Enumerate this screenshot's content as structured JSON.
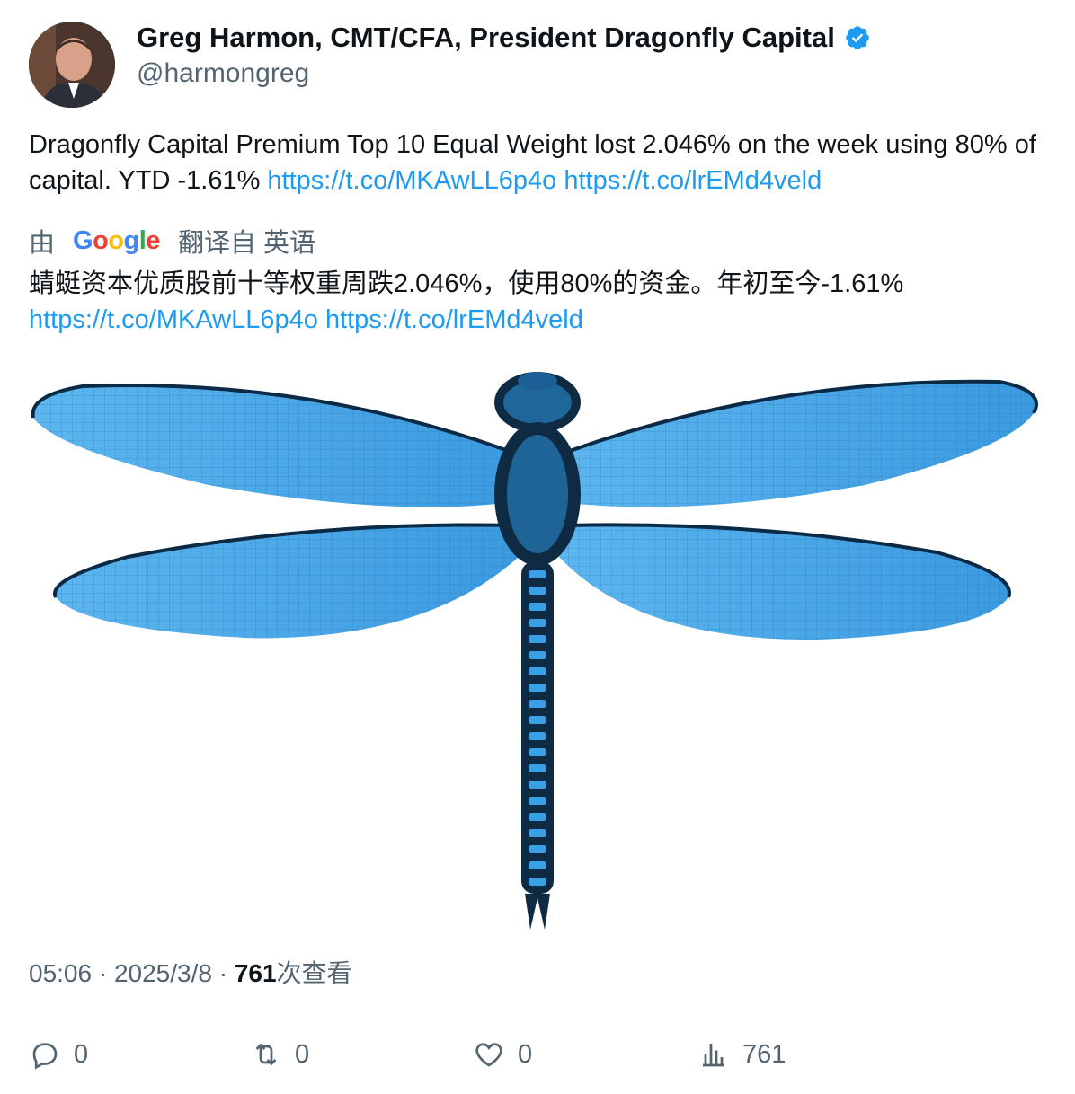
{
  "author": {
    "name": "Greg Harmon, CMT/CFA, President Dragonfly Capital",
    "handle": "@harmongreg"
  },
  "tweet": {
    "text_main": "Dragonfly Capital Premium Top 10 Equal Weight lost 2.046% on the week using 80% of capital.  YTD -1.61% ",
    "link1": "https://t.co/MKAwLL6p4o",
    "link2": "https://t.co/lrEMd4veld"
  },
  "translation": {
    "prefix": "由",
    "provider": "Google",
    "suffix": "翻译自 英语",
    "text": "蜻蜓资本优质股前十等权重周跌2.046%，使用80%的资金。年初至今-1.61%",
    "link1": "https://t.co/MKAwLL6p4o",
    "link2": "https://t.co/lrEMd4veld"
  },
  "meta": {
    "time": "05:06",
    "date": "2025/3/8",
    "views": "761",
    "views_label": "次查看"
  },
  "actions": {
    "reply_count": "0",
    "retweet_count": "0",
    "like_count": "0",
    "views_count": "761"
  },
  "colors": {
    "link": "#1d9bf0",
    "muted": "#536471",
    "verified": "#1d9bf0",
    "dragonfly_wing": "#4aa8e6"
  },
  "icons": [
    "verified-badge-icon",
    "reply-icon",
    "retweet-icon",
    "like-icon",
    "views-icon"
  ]
}
